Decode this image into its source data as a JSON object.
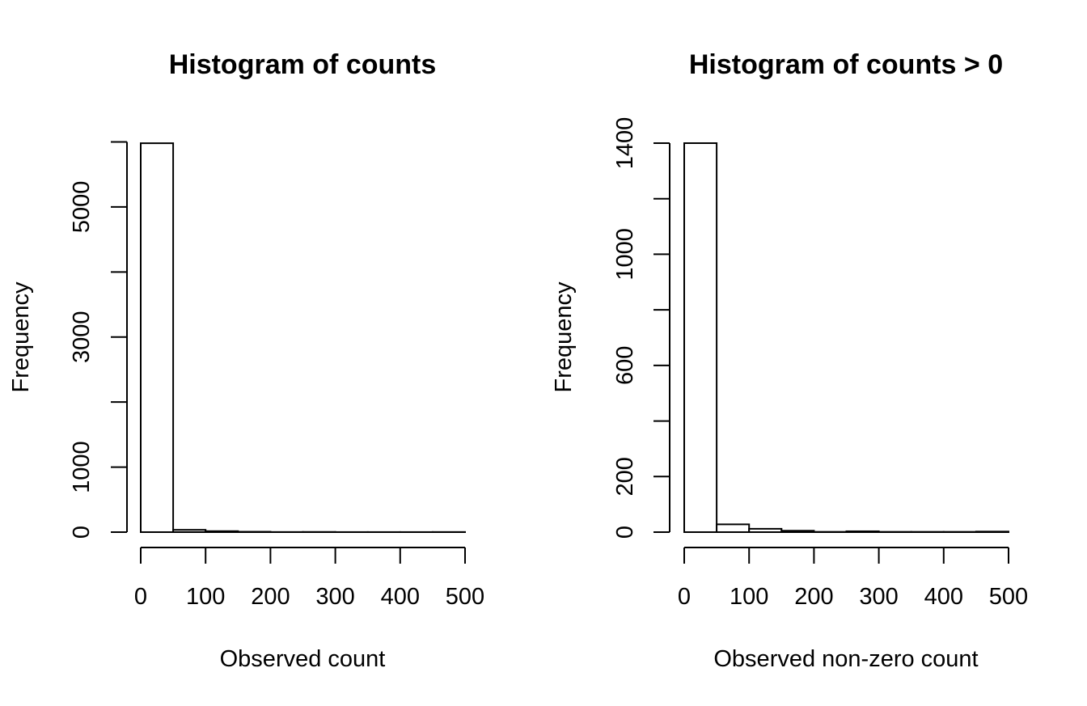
{
  "chart_data": [
    {
      "type": "bar",
      "title": "Histogram of counts",
      "xlabel": "Observed count",
      "ylabel": "Frequency",
      "xlim": [
        0,
        500
      ],
      "ylim": [
        0,
        6000
      ],
      "grid": false,
      "bins": [
        [
          0,
          50
        ],
        [
          50,
          100
        ],
        [
          100,
          150
        ],
        [
          150,
          200
        ],
        [
          200,
          250
        ],
        [
          250,
          300
        ],
        [
          300,
          350
        ],
        [
          350,
          400
        ],
        [
          400,
          450
        ],
        [
          450,
          500
        ]
      ],
      "values": [
        5980,
        35,
        15,
        6,
        2,
        3,
        1,
        1,
        1,
        2
      ],
      "x_ticks": [
        0,
        100,
        200,
        300,
        400,
        500
      ],
      "x_tick_labels": [
        "0",
        "100",
        "200",
        "300",
        "400",
        "500"
      ],
      "y_ticks": [
        0,
        1000,
        2000,
        3000,
        4000,
        5000,
        6000
      ],
      "y_tick_labels": [
        "0",
        "1000",
        "",
        "3000",
        "",
        "5000",
        ""
      ]
    },
    {
      "type": "bar",
      "title": "Histogram of counts > 0",
      "xlabel": "Observed non-zero count",
      "ylabel": "Frequency",
      "xlim": [
        0,
        500
      ],
      "ylim": [
        0,
        1400
      ],
      "grid": false,
      "bins": [
        [
          0,
          50
        ],
        [
          50,
          100
        ],
        [
          100,
          150
        ],
        [
          150,
          200
        ],
        [
          200,
          250
        ],
        [
          250,
          300
        ],
        [
          300,
          350
        ],
        [
          350,
          400
        ],
        [
          400,
          450
        ],
        [
          450,
          500
        ]
      ],
      "values": [
        1400,
        28,
        12,
        5,
        1,
        3,
        1,
        1,
        1,
        2
      ],
      "x_ticks": [
        0,
        100,
        200,
        300,
        400,
        500
      ],
      "x_tick_labels": [
        "0",
        "100",
        "200",
        "300",
        "400",
        "500"
      ],
      "y_ticks": [
        0,
        200,
        400,
        600,
        800,
        1000,
        1200,
        1400
      ],
      "y_tick_labels": [
        "0",
        "200",
        "",
        "600",
        "",
        "1000",
        "",
        "1400"
      ]
    }
  ]
}
